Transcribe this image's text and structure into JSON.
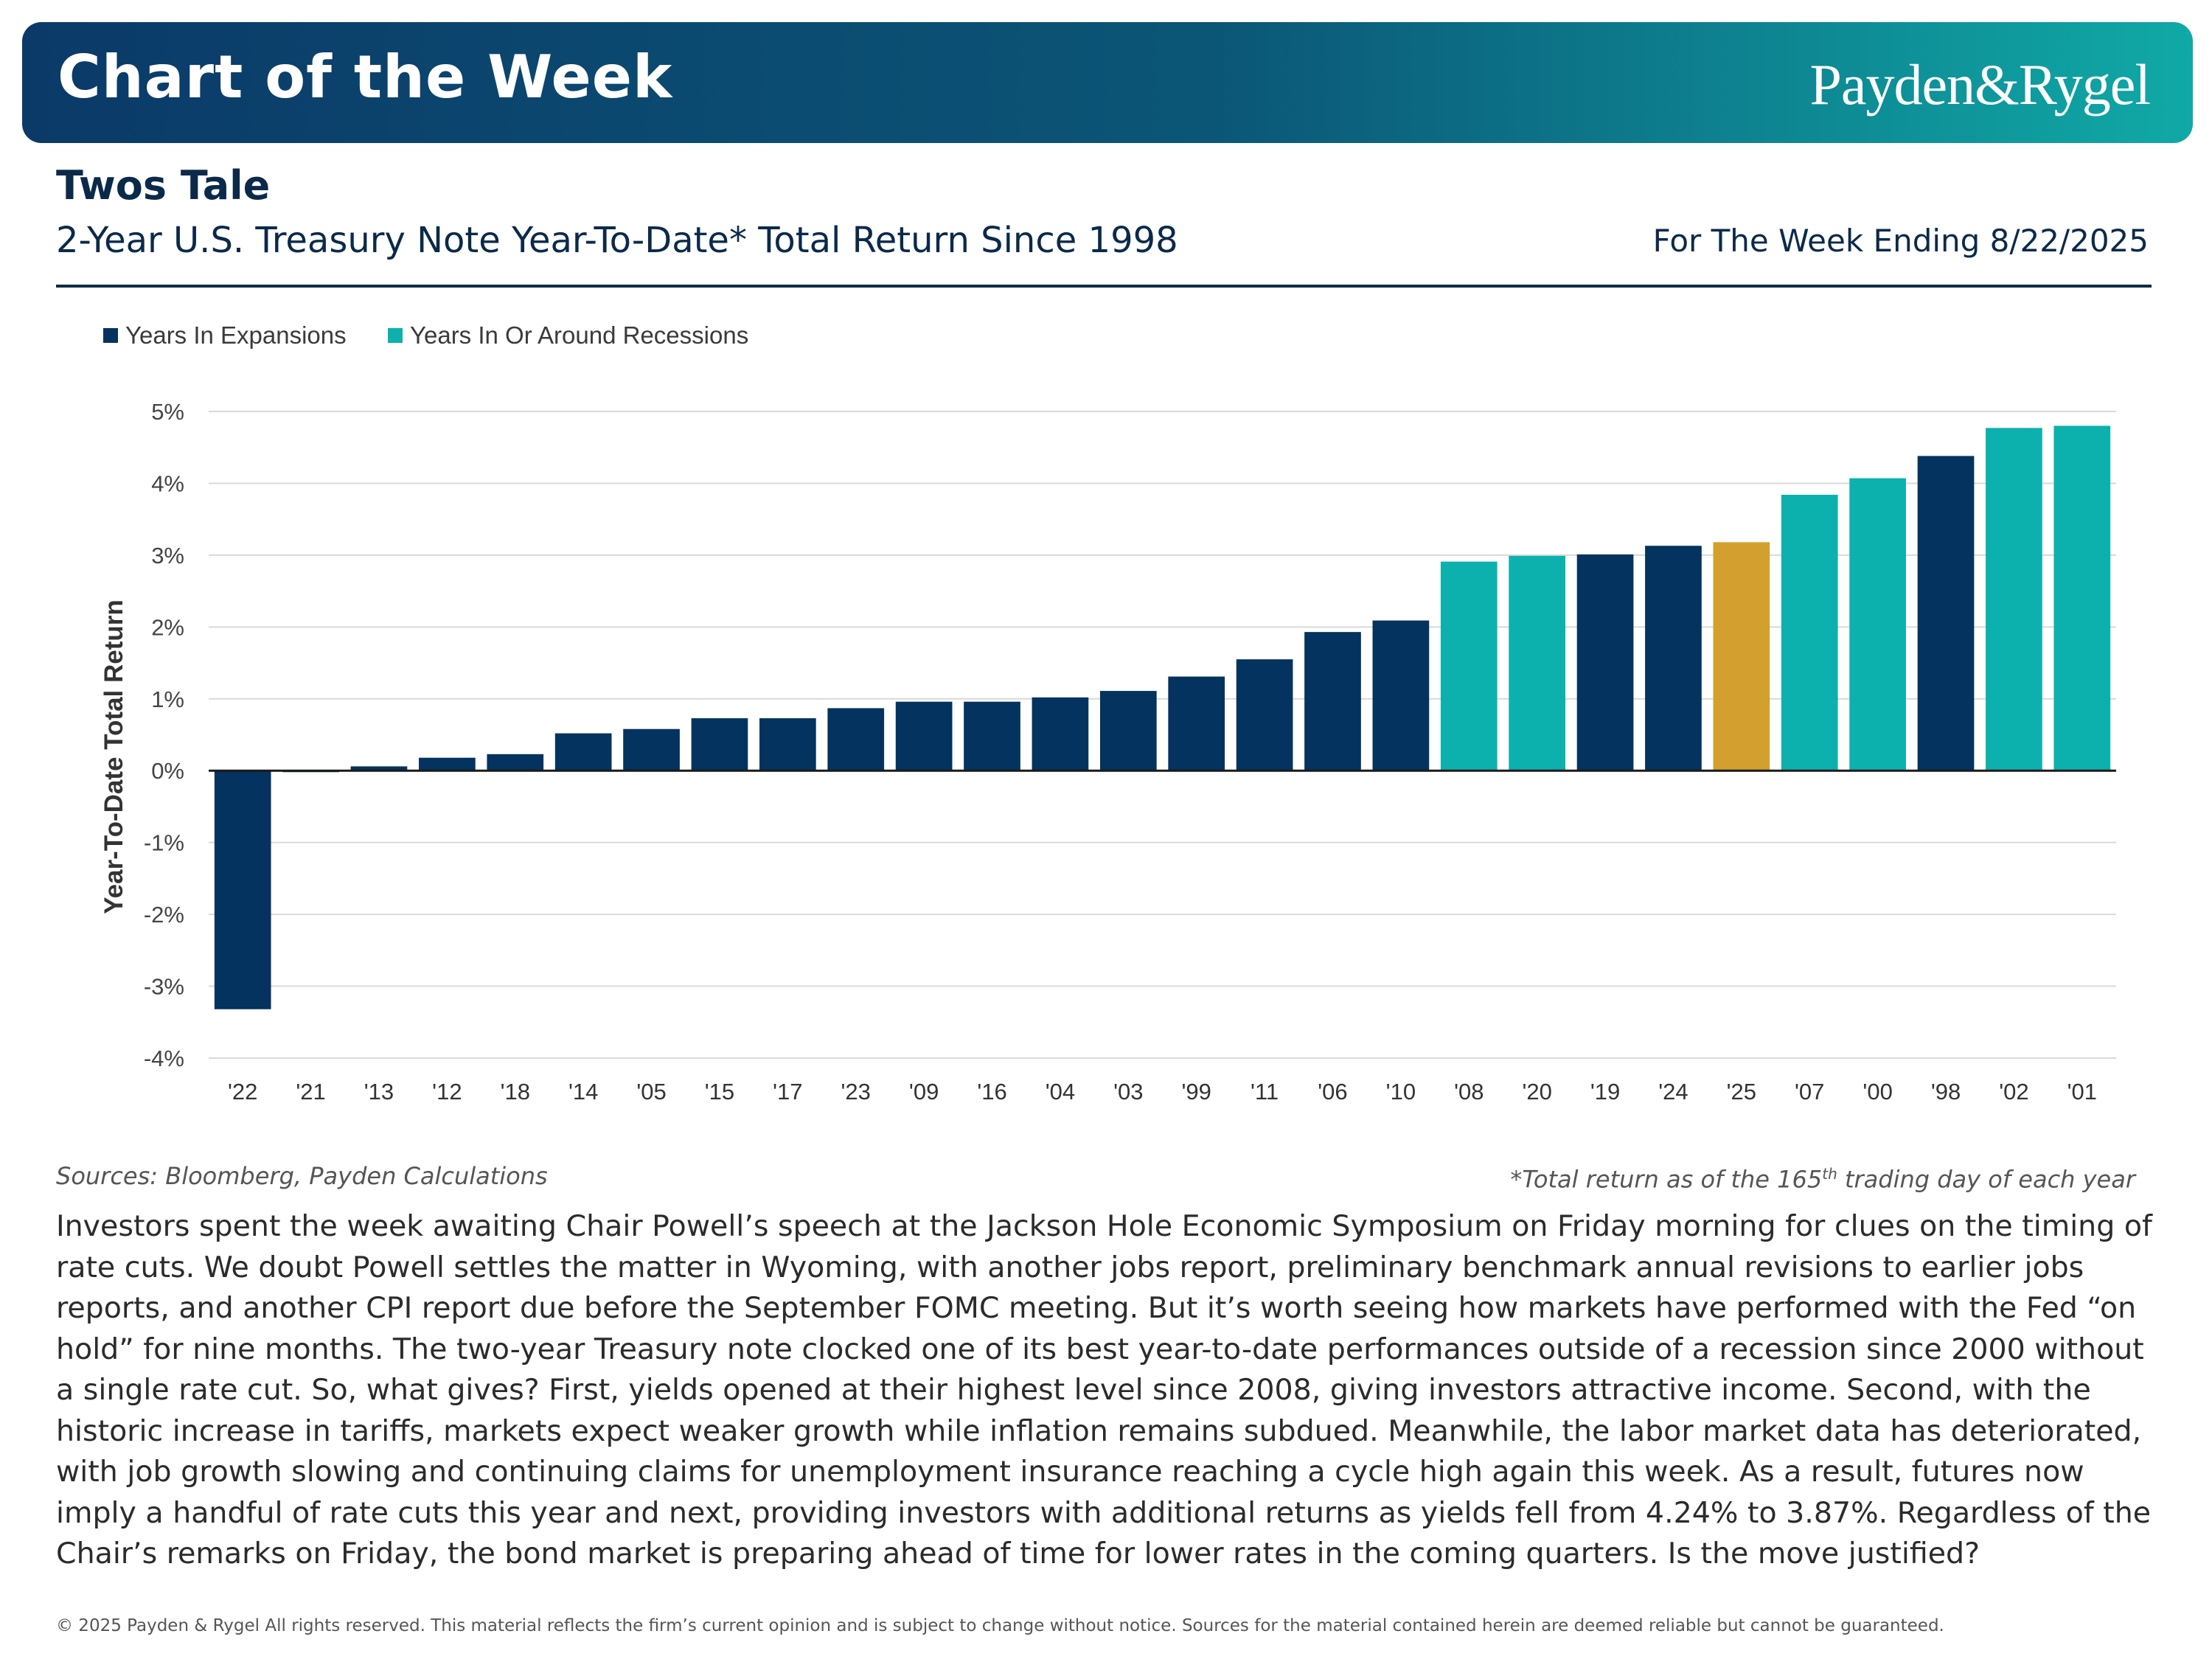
{
  "header": {
    "banner_title": "Chart of the Week",
    "brand": "Payden&Rygel",
    "section_title": "Twos Tale",
    "subtitle": "2-Year U.S. Treasury Note Year-To-Date* Total Return Since 1998",
    "week_ending": "For The Week Ending 8/22/2025"
  },
  "colors": {
    "expansion": "#03335e",
    "recession": "#0cb1ad",
    "current": "#d3a02f",
    "gridline": "#d9d9d9",
    "axis": "#1a1a1a"
  },
  "chart_data": {
    "type": "bar",
    "ylabel": "Year-To-Date Total Return",
    "ylim": [
      -4,
      5
    ],
    "yticks": [
      "5%",
      "4%",
      "3%",
      "2%",
      "1%",
      "0%",
      "-1%",
      "-2%",
      "-3%",
      "-4%"
    ],
    "grid": true,
    "legend_position": "top-left",
    "legend": [
      {
        "label": "Years In Expansions",
        "group": "expansion"
      },
      {
        "label": "Years In Or Around Recessions",
        "group": "recession"
      }
    ],
    "categories": [
      "'22",
      "'21",
      "'13",
      "'12",
      "'18",
      "'14",
      "'05",
      "'15",
      "'17",
      "'23",
      "'09",
      "'16",
      "'04",
      "'03",
      "'99",
      "'11",
      "'06",
      "'10",
      "'08",
      "'20",
      "'19",
      "'24",
      "'25",
      "'07",
      "'00",
      "'98",
      "'02",
      "'01"
    ],
    "values": [
      -3.32,
      -0.02,
      0.06,
      0.18,
      0.23,
      0.52,
      0.58,
      0.73,
      0.73,
      0.87,
      0.96,
      0.96,
      1.02,
      1.11,
      1.31,
      1.55,
      1.93,
      2.09,
      2.91,
      2.99,
      3.01,
      3.13,
      3.18,
      3.84,
      4.07,
      4.38,
      4.77,
      4.8
    ],
    "groups": [
      "expansion",
      "expansion",
      "expansion",
      "expansion",
      "expansion",
      "expansion",
      "expansion",
      "expansion",
      "expansion",
      "expansion",
      "expansion",
      "expansion",
      "expansion",
      "expansion",
      "expansion",
      "expansion",
      "expansion",
      "expansion",
      "recession",
      "recession",
      "expansion",
      "expansion",
      "current",
      "recession",
      "recession",
      "expansion",
      "recession",
      "recession"
    ]
  },
  "notes": {
    "sources": "Sources: Bloomberg, Payden Calculations",
    "footnote_prefix": "*Total return as of the 165",
    "footnote_sup": "th",
    "footnote_suffix": " trading day of each year"
  },
  "body": "Investors spent the week awaiting Chair Powell’s speech at the Jackson Hole Economic Symposium on Friday morning for clues on the timing of rate cuts. We doubt Powell settles the matter in Wyoming, with another jobs report, preliminary benchmark annual revisions to earlier jobs reports, and another CPI report due before the September FOMC meeting. But it’s worth seeing how markets have performed with the Fed “on hold” for nine months. The two-year Treasury note clocked one of its best year-to-date performances outside of a recession since 2000 without a single rate cut. So, what gives? First, yields opened at their highest level since 2008, giving investors attractive income. Second, with the historic increase in tariffs, markets expect weaker growth while inflation remains subdued. Meanwhile, the labor market data has deteriorated, with job growth slowing and continuing claims for unemployment insurance reaching a cycle high again this week. As a result, futures now imply a handful of rate cuts this year and next, providing investors with additional returns as yields fell from 4.24% to 3.87%. Regardless of the Chair’s remarks on Friday, the bond market is preparing ahead of time for lower rates in the coming quarters. Is the move justified?",
  "copyright": "© 2025 Payden & Rygel All rights reserved. This material reflects the firm’s current opinion and is subject to change without notice. Sources for the material contained herein are deemed reliable but cannot be guaranteed."
}
